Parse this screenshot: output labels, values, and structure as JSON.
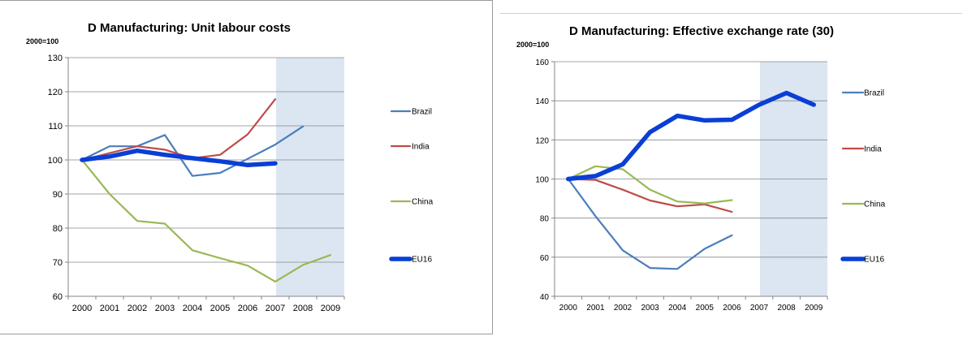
{
  "colors": {
    "Brazil": "#4a7ebb",
    "India": "#be4b48",
    "China": "#98b954",
    "EU16": "#0a3fd6",
    "shade": "#dce6f2",
    "grid": "#868686"
  },
  "chart_data": [
    {
      "type": "line",
      "title": "D  Manufacturing: Unit labour costs",
      "unit_label": "2000=100",
      "x": [
        "2000",
        "2001",
        "2002",
        "2003",
        "2004",
        "2005",
        "2006",
        "2007",
        "2008",
        "2009"
      ],
      "ylim": [
        60,
        130
      ],
      "yticks": [
        "60",
        "70",
        "80",
        "90",
        "100",
        "110",
        "120",
        "130"
      ],
      "grid": true,
      "legend_position": "right",
      "shaded_range": [
        "2007",
        "2009"
      ],
      "series": [
        {
          "name": "Brazil",
          "values": [
            100,
            104,
            104,
            107.3,
            95.3,
            96.2,
            100.3,
            104.5,
            109.8,
            null
          ]
        },
        {
          "name": "India",
          "values": [
            100,
            102,
            104,
            103,
            100.5,
            101.5,
            107.5,
            117.8,
            null,
            null
          ]
        },
        {
          "name": "China",
          "values": [
            100,
            90,
            82.1,
            81.3,
            73.5,
            71.2,
            69,
            64.3,
            69.2,
            72.1
          ]
        },
        {
          "name": "EU16",
          "values": [
            100,
            101,
            102.7,
            101.5,
            100.5,
            99.6,
            98.5,
            99,
            null,
            null
          ]
        }
      ]
    },
    {
      "type": "line",
      "title": "D  Manufacturing: Effective exchange rate (30)",
      "unit_label": "2000=100",
      "x": [
        "2000",
        "2001",
        "2002",
        "2003",
        "2004",
        "2005",
        "2006",
        "2007",
        "2008",
        "2009"
      ],
      "ylim": [
        40,
        160
      ],
      "yticks": [
        "40",
        "60",
        "80",
        "100",
        "120",
        "140",
        "160"
      ],
      "grid": true,
      "legend_position": "right",
      "shaded_range": [
        "2007",
        "2009"
      ],
      "series": [
        {
          "name": "Brazil",
          "values": [
            100,
            81,
            63.5,
            54.5,
            54,
            64.3,
            71.2,
            null,
            null,
            null
          ]
        },
        {
          "name": "India",
          "values": [
            100,
            99.5,
            94.5,
            89,
            86,
            87,
            83.2,
            null,
            null,
            null
          ]
        },
        {
          "name": "China",
          "values": [
            100,
            106.5,
            105,
            94.5,
            88.5,
            87.5,
            89.2,
            null,
            null,
            null
          ]
        },
        {
          "name": "EU16",
          "values": [
            100,
            101.5,
            107.5,
            124,
            132.3,
            130,
            130.3,
            138,
            144,
            138
          ]
        }
      ]
    }
  ]
}
